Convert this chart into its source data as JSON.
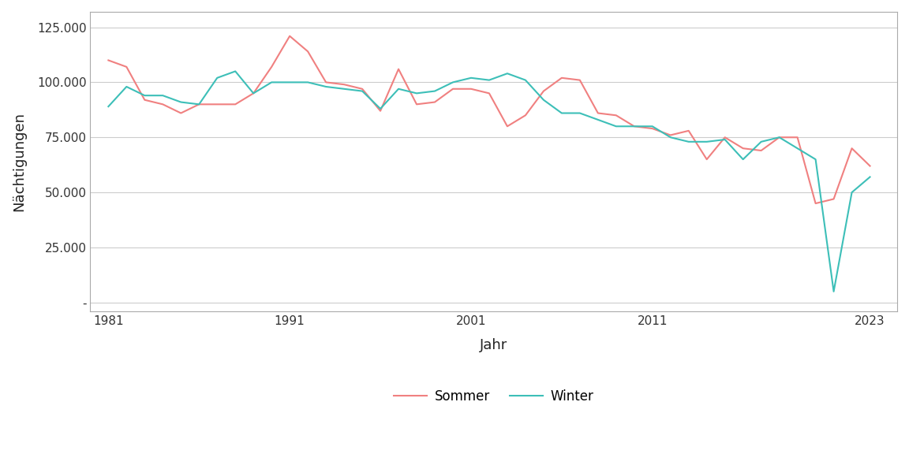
{
  "years": [
    1981,
    1982,
    1983,
    1984,
    1985,
    1986,
    1987,
    1988,
    1989,
    1990,
    1991,
    1992,
    1993,
    1994,
    1995,
    1996,
    1997,
    1998,
    1999,
    2000,
    2001,
    2002,
    2003,
    2004,
    2005,
    2006,
    2007,
    2008,
    2009,
    2010,
    2011,
    2012,
    2013,
    2014,
    2015,
    2016,
    2017,
    2018,
    2019,
    2020,
    2021,
    2022,
    2023
  ],
  "sommer": [
    110000,
    107000,
    92000,
    90000,
    86000,
    90000,
    90000,
    90000,
    95000,
    107000,
    121000,
    114000,
    100000,
    99000,
    97000,
    87000,
    106000,
    90000,
    91000,
    97000,
    97000,
    95000,
    80000,
    85000,
    96000,
    102000,
    101000,
    86000,
    85000,
    80000,
    79000,
    76000,
    78000,
    65000,
    75000,
    70000,
    69000,
    75000,
    75000,
    45000,
    47000,
    70000,
    62000
  ],
  "winter": [
    89000,
    98000,
    94000,
    94000,
    91000,
    90000,
    102000,
    105000,
    95000,
    100000,
    100000,
    100000,
    98000,
    97000,
    96000,
    88000,
    97000,
    95000,
    96000,
    100000,
    102000,
    101000,
    104000,
    101000,
    92000,
    86000,
    86000,
    83000,
    80000,
    80000,
    80000,
    75000,
    73000,
    73000,
    74000,
    65000,
    73000,
    75000,
    70000,
    65000,
    5000,
    50000,
    57000
  ],
  "sommer_color": "#F08080",
  "winter_color": "#3DBFB8",
  "xlabel": "Jahr",
  "ylabel": "Nächtigungen",
  "ylim": [
    -4000,
    132000
  ],
  "xlim": [
    1980.0,
    2024.5
  ],
  "yticks": [
    0,
    25000,
    50000,
    75000,
    100000,
    125000
  ],
  "ytick_labels": [
    "-",
    "25.000",
    "50.000",
    "75.000",
    "100.000",
    "125.000"
  ],
  "xticks": [
    1981,
    1991,
    2001,
    2011,
    2023
  ],
  "legend_labels": [
    "Sommer",
    "Winter"
  ],
  "fig_background": "#ffffff",
  "plot_background": "#ffffff",
  "grid_color": "#cccccc",
  "line_width": 1.5
}
